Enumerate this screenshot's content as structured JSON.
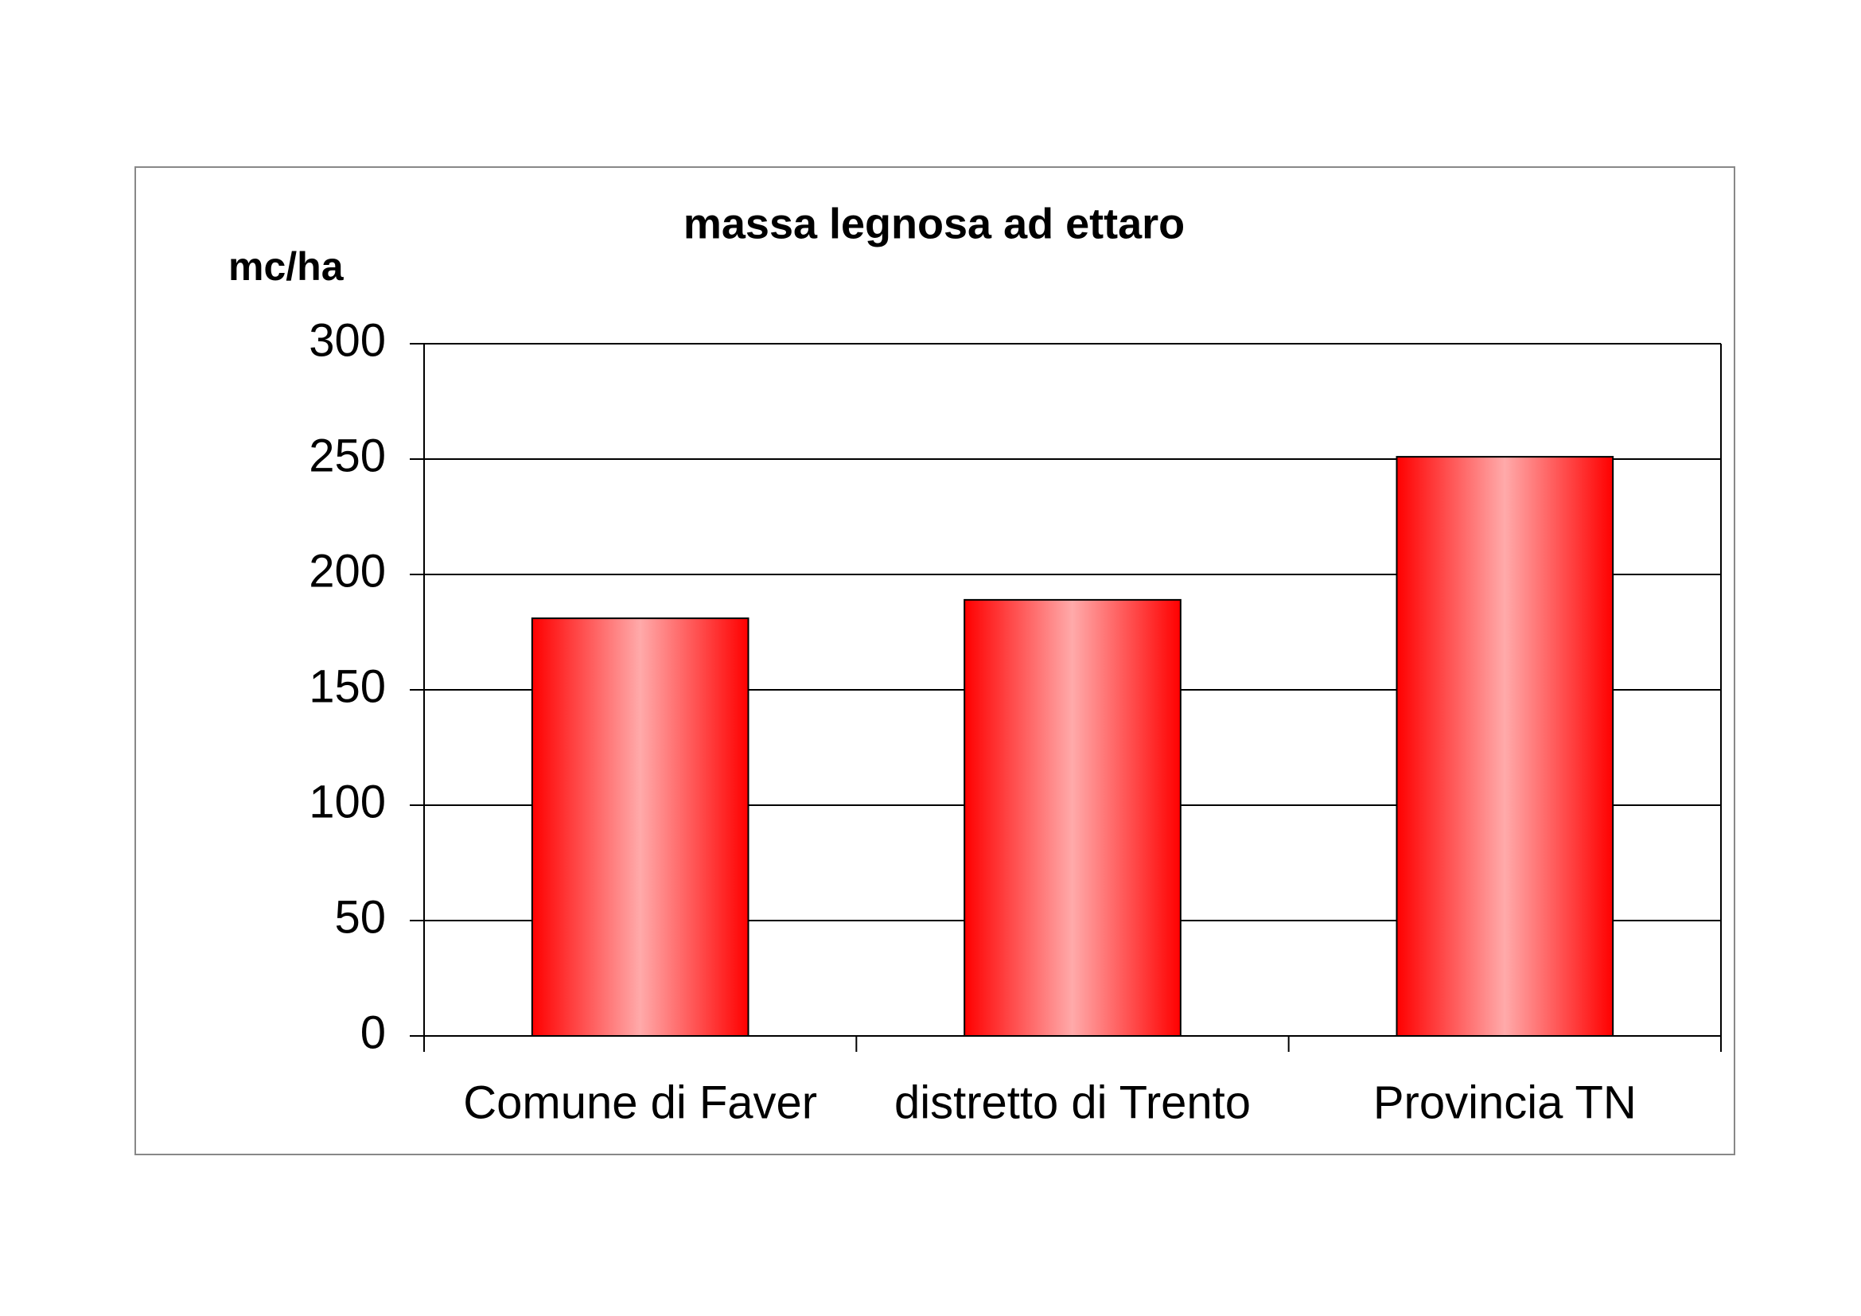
{
  "chart_data": {
    "type": "bar",
    "title": "massa legnosa ad ettaro",
    "y_label": "mc/ha",
    "categories": [
      "Comune di Faver",
      "distretto di Trento",
      "Provincia TN"
    ],
    "values": [
      181,
      189,
      251
    ],
    "color": "#ff0000",
    "ylim": [
      0,
      300
    ],
    "yticks": [
      0,
      50,
      100,
      150,
      200,
      250,
      300
    ],
    "grid": true
  }
}
